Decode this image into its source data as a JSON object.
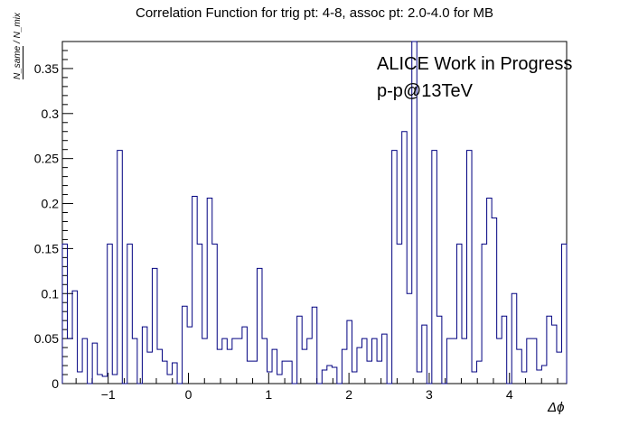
{
  "chart_data": {
    "type": "step-histogram",
    "title": "Correlation Function for trig pt: 4-8, assoc pt: 2.0-4.0 for MB",
    "xlabel": "Δϕ",
    "ylabel_numerator": "N_same",
    "ylabel_denominator": "N_mix",
    "annotations": [
      "ALICE Work in Progress",
      "p-p@13TeV"
    ],
    "xlim": [
      -1.5708,
      4.7124
    ],
    "ylim": [
      0,
      0.38
    ],
    "x_ticks": [
      -1,
      0,
      1,
      2,
      3,
      4
    ],
    "x_tick_labels": [
      "−1",
      "0",
      "1",
      "2",
      "3",
      "4"
    ],
    "y_ticks": [
      0,
      0.05,
      0.1,
      0.15,
      0.2,
      0.25,
      0.3,
      0.35
    ],
    "y_tick_labels": [
      "0",
      "0.05",
      "0.1",
      "0.15",
      "0.2",
      "0.25",
      "0.3",
      "0.35"
    ],
    "line_color": "#000080",
    "values": [
      0.155,
      0.05,
      0.103,
      0.013,
      0.05,
      0.0,
      0.045,
      0.01,
      0.008,
      0.155,
      0.01,
      0.259,
      0.0,
      0.155,
      0.05,
      0.0,
      0.063,
      0.035,
      0.128,
      0.038,
      0.025,
      0.01,
      0.023,
      0.0,
      0.086,
      0.063,
      0.208,
      0.155,
      0.05,
      0.206,
      0.155,
      0.038,
      0.05,
      0.038,
      0.05,
      0.05,
      0.063,
      0.025,
      0.025,
      0.128,
      0.05,
      0.013,
      0.038,
      0.01,
      0.025,
      0.025,
      0.0,
      0.075,
      0.038,
      0.05,
      0.085,
      0.0,
      0.015,
      0.02,
      0.018,
      0.0,
      0.038,
      0.07,
      0.013,
      0.04,
      0.05,
      0.025,
      0.05,
      0.025,
      0.055,
      0.0,
      0.259,
      0.155,
      0.28,
      0.1,
      0.38,
      0.013,
      0.065,
      0.0,
      0.259,
      0.075,
      0.0,
      0.05,
      0.05,
      0.155,
      0.05,
      0.259,
      0.013,
      0.025,
      0.155,
      0.206,
      0.184,
      0.05,
      0.075,
      0.0,
      0.1,
      0.038,
      0.013,
      0.05,
      0.05,
      0.015,
      0.02,
      0.075,
      0.065,
      0.035,
      0.155
    ]
  }
}
